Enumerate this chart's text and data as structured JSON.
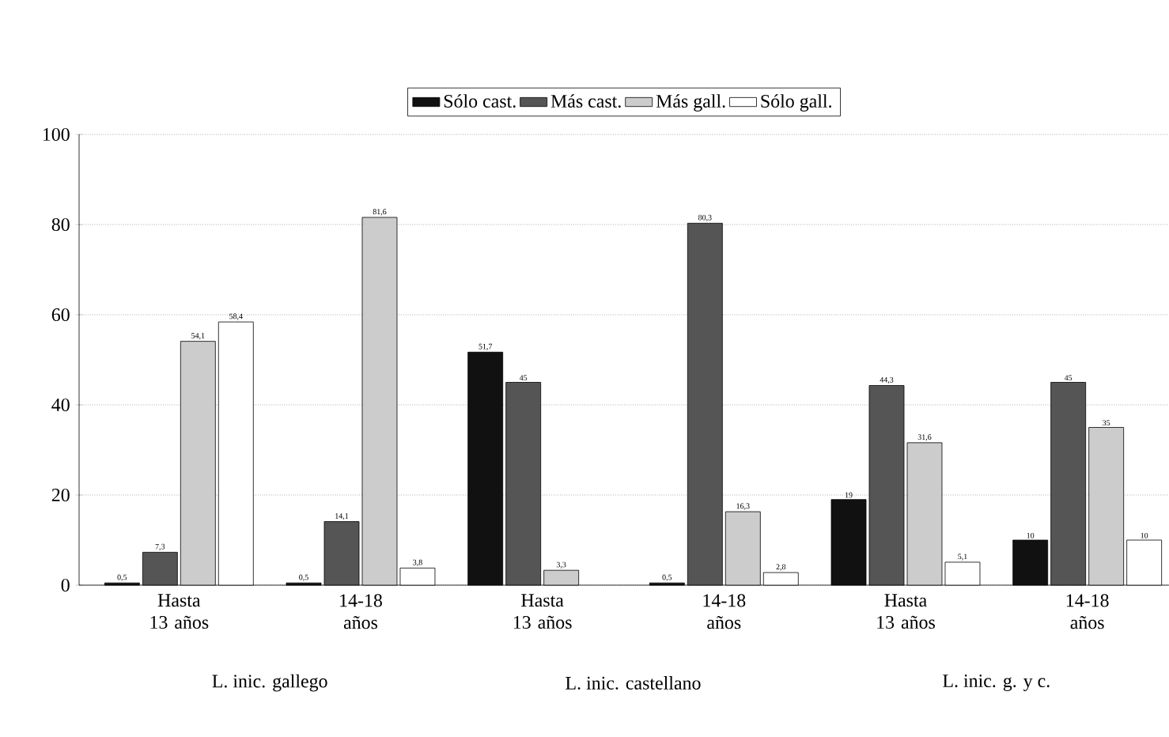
{
  "chart_data": {
    "type": "bar",
    "categories": [
      "Hasta 13 años",
      "14-18 años",
      "Hasta 13 años",
      "14-18 años",
      "Hasta 13 años",
      "14-18 años"
    ],
    "series": [
      {
        "name": "Sólo cast.",
        "color": "#111111",
        "values": [
          0.5,
          0.5,
          51.7,
          0.5,
          19,
          10
        ],
        "value_labels": [
          "0,5",
          "0,5",
          "51,7",
          "0,5",
          "19",
          "10"
        ]
      },
      {
        "name": "Más cast.",
        "color": "#555555",
        "values": [
          7.3,
          14.1,
          45,
          80.3,
          44.3,
          45
        ],
        "value_labels": [
          "7,3",
          "14,1",
          "45",
          "80,3",
          "44,3",
          "45"
        ]
      },
      {
        "name": "Más gall.",
        "color": "#cccccc",
        "values": [
          54.1,
          81.6,
          3.3,
          16.3,
          31.6,
          35
        ],
        "value_labels": [
          "54,1",
          "81,6",
          "3,3",
          "16,3",
          "31,6",
          "35"
        ]
      },
      {
        "name": "Sólo gall.",
        "color": "#ffffff",
        "values": [
          58.4,
          3.8,
          null,
          2.8,
          5.1,
          10
        ],
        "value_labels": [
          "58,4",
          "3,8",
          null,
          "2,8",
          "5,1",
          "10"
        ]
      }
    ],
    "annotations": [
      "L. inic. gallego",
      "L. inic. castellano",
      "L. inic. g. y c."
    ],
    "ylim": [
      0,
      100
    ],
    "yticks": [
      0,
      20,
      40,
      60,
      80,
      100
    ],
    "grid": "y",
    "legend": "top"
  }
}
